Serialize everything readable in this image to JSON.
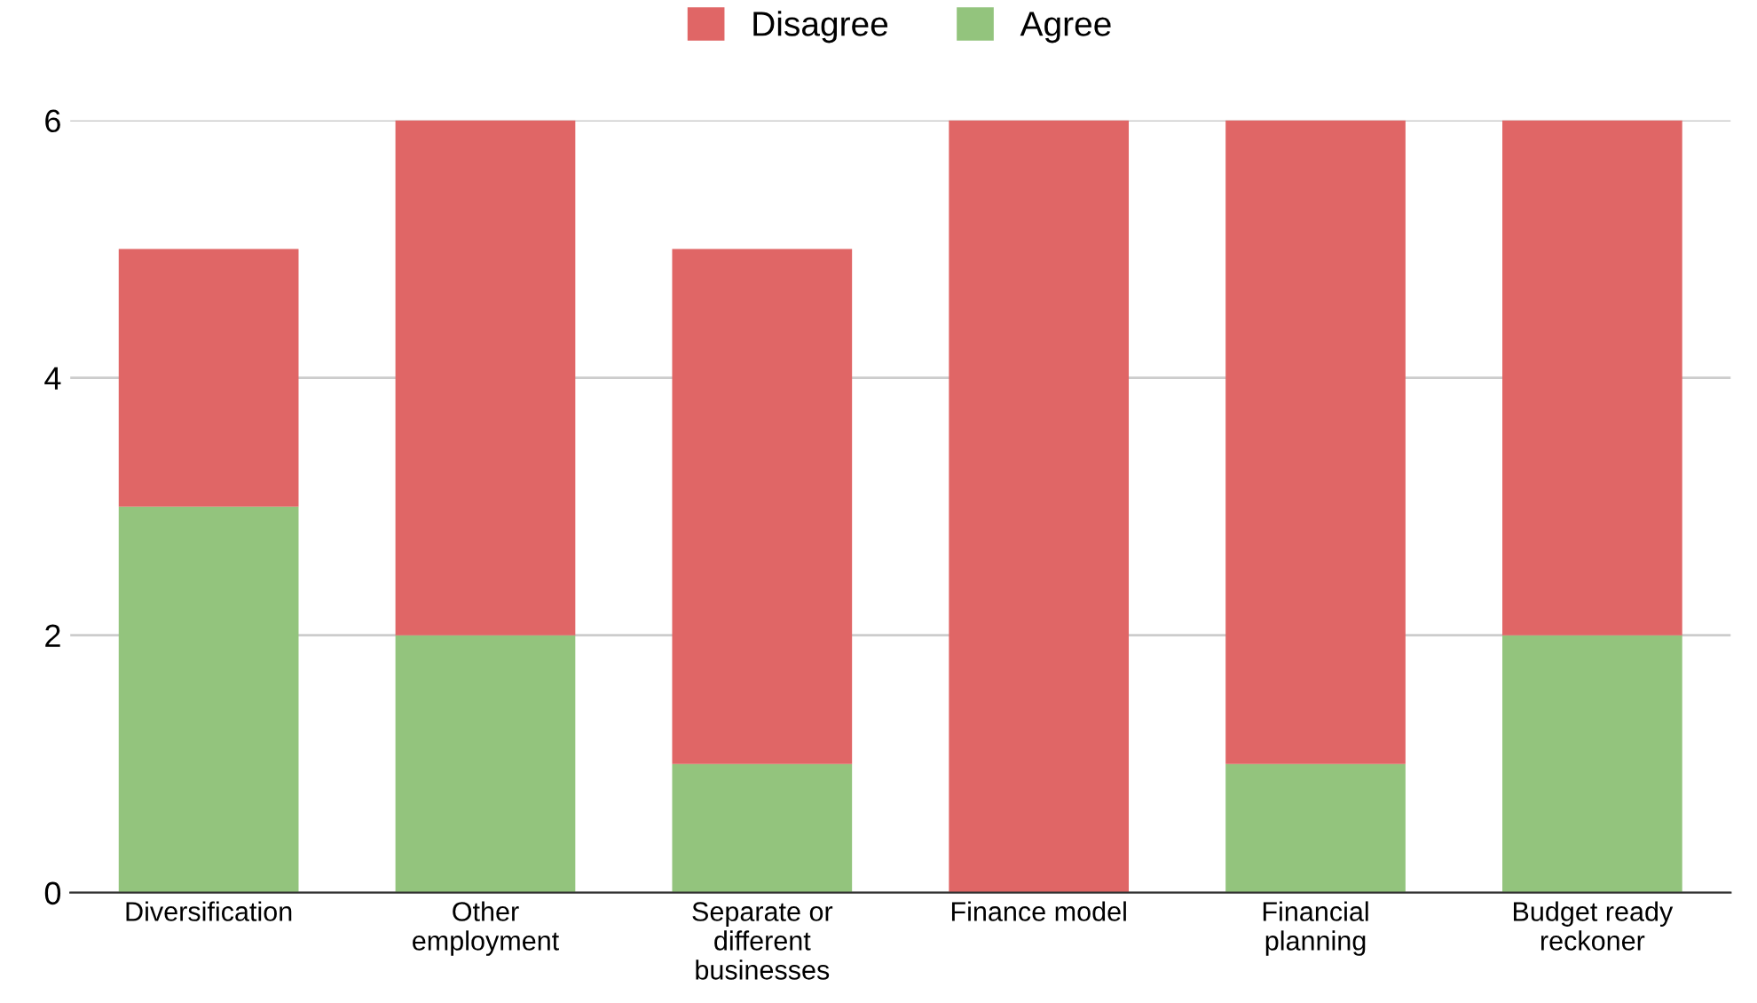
{
  "chart_data": {
    "type": "bar",
    "stacked": true,
    "categories": [
      "Diversification",
      "Other\nemployment",
      "Separate or\ndifferent\nbusinesses",
      "Finance model",
      "Financial\nplanning",
      "Budget ready\nreckoner"
    ],
    "series": [
      {
        "name": "Agree",
        "color": "#93c47d",
        "values": [
          3,
          2,
          1,
          0,
          1,
          2
        ]
      },
      {
        "name": "Disagree",
        "color": "#e06666",
        "values": [
          2,
          4,
          4,
          6,
          5,
          4
        ]
      }
    ],
    "ylim": [
      0,
      6
    ],
    "yticks": [
      0,
      2,
      4,
      6
    ],
    "grid": "y",
    "legend": "top"
  }
}
